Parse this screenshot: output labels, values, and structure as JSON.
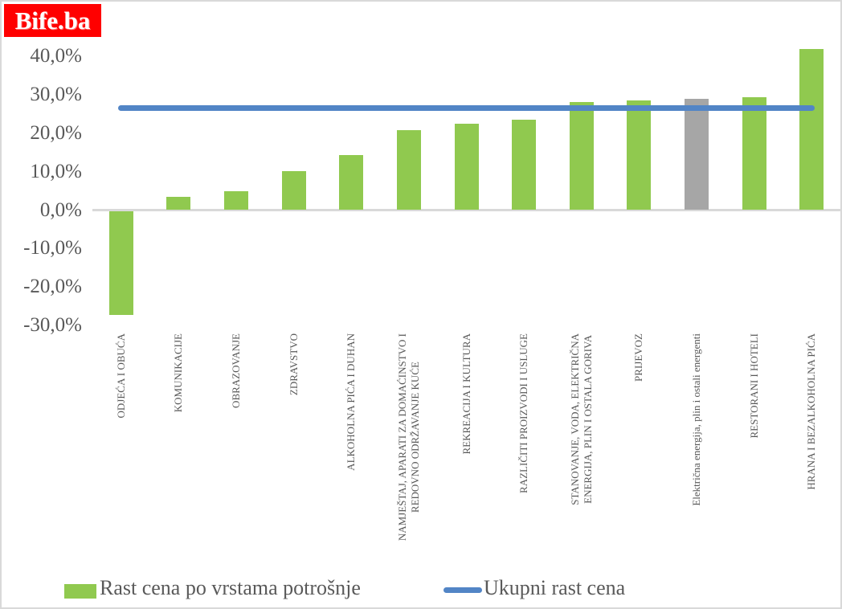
{
  "logo": {
    "text": "Bife.ba",
    "bg": "#ff0000",
    "color": "#ffffff"
  },
  "colors": {
    "green": "#90c94f",
    "gray": "#a6a6a6",
    "blue": "#5285c6",
    "axis_text": "#595959",
    "gridline": "#d9d9d9"
  },
  "chart_data": {
    "type": "bar",
    "title": "",
    "xlabel": "",
    "ylabel": "",
    "ylim": [
      -31.5,
      44
    ],
    "grid": false,
    "legend_position": "bottom",
    "y_ticks": [
      "40,0%",
      "30,0%",
      "20,0%",
      "10,0%",
      "0,0%",
      "-10,0%",
      "-20,0%",
      "-30,0%"
    ],
    "y_tick_values": [
      40,
      30,
      20,
      10,
      0,
      -10,
      -20,
      -30
    ],
    "categories": [
      "ODJEĆA I OBUĆA",
      "KOMUNIKACIJE",
      "OBRAZOVANJE",
      "ZDRAVSTVO",
      "ALKOHOLNA PIĆA I DUHAN",
      "NAMJEŠTAJ, APARATI ZA DOMAĆINSTVO I\nREDOVNO ODRŽAVANJE KUĆE",
      "REKREACIJA I KULTURA",
      "RAZLIČITI PROIZVODI I USLUGE",
      "STANOVANJE, VODA, ELEKTRIČNA\nENERGIJA, PLIN I OSTALA GORIVA",
      "PRIJEVOZ",
      "Električna energija, plin i ostali energenti",
      "RESTORANI I HOTELI",
      "HRANA I BEZALKOHOLNA PIĆA"
    ],
    "series": [
      {
        "name": "Rast cena po vrstama potrošnje",
        "type": "bar",
        "values": [
          -27.0,
          3.5,
          5.0,
          10.1,
          14.3,
          20.8,
          22.5,
          23.5,
          28.1,
          28.6,
          28.9,
          29.4,
          41.8
        ],
        "bar_color_keys": [
          "green",
          "green",
          "green",
          "green",
          "green",
          "green",
          "green",
          "green",
          "green",
          "green",
          "gray",
          "green",
          "green"
        ]
      },
      {
        "name": "Ukupni rast cena",
        "type": "line",
        "value": 26.5
      }
    ]
  }
}
